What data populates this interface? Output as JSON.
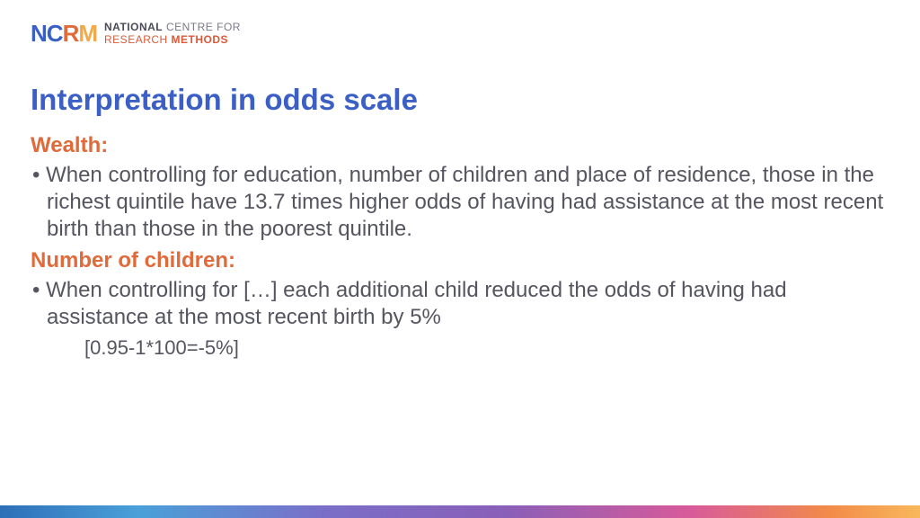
{
  "logo": {
    "mark": {
      "n": "N",
      "c": "C",
      "r": "R",
      "m": "M"
    },
    "line1_bold": "NATIONAL",
    "line1_light": " CENTRE FOR",
    "line2_light": "RESEARCH ",
    "line2_bold": "METHODS"
  },
  "slide": {
    "title": "Interpretation in odds scale",
    "section1_heading": "Wealth:",
    "section1_bullet": "When controlling for education, number of children and place of residence, those in the richest quintile have 13.7 times higher odds of having had assistance at the most recent birth than those in the poorest quintile.",
    "section2_heading": "Number of children:",
    "section2_bullet": "When controlling for […] each additional child reduced the odds of having had assistance at the most recent birth by 5%",
    "calculation": "[0.95-1*100=-5%]"
  },
  "colors": {
    "title_color": "#3b5fc4",
    "subhead_color": "#e06a3a",
    "body_color": "#555560",
    "background": "#ffffff"
  }
}
